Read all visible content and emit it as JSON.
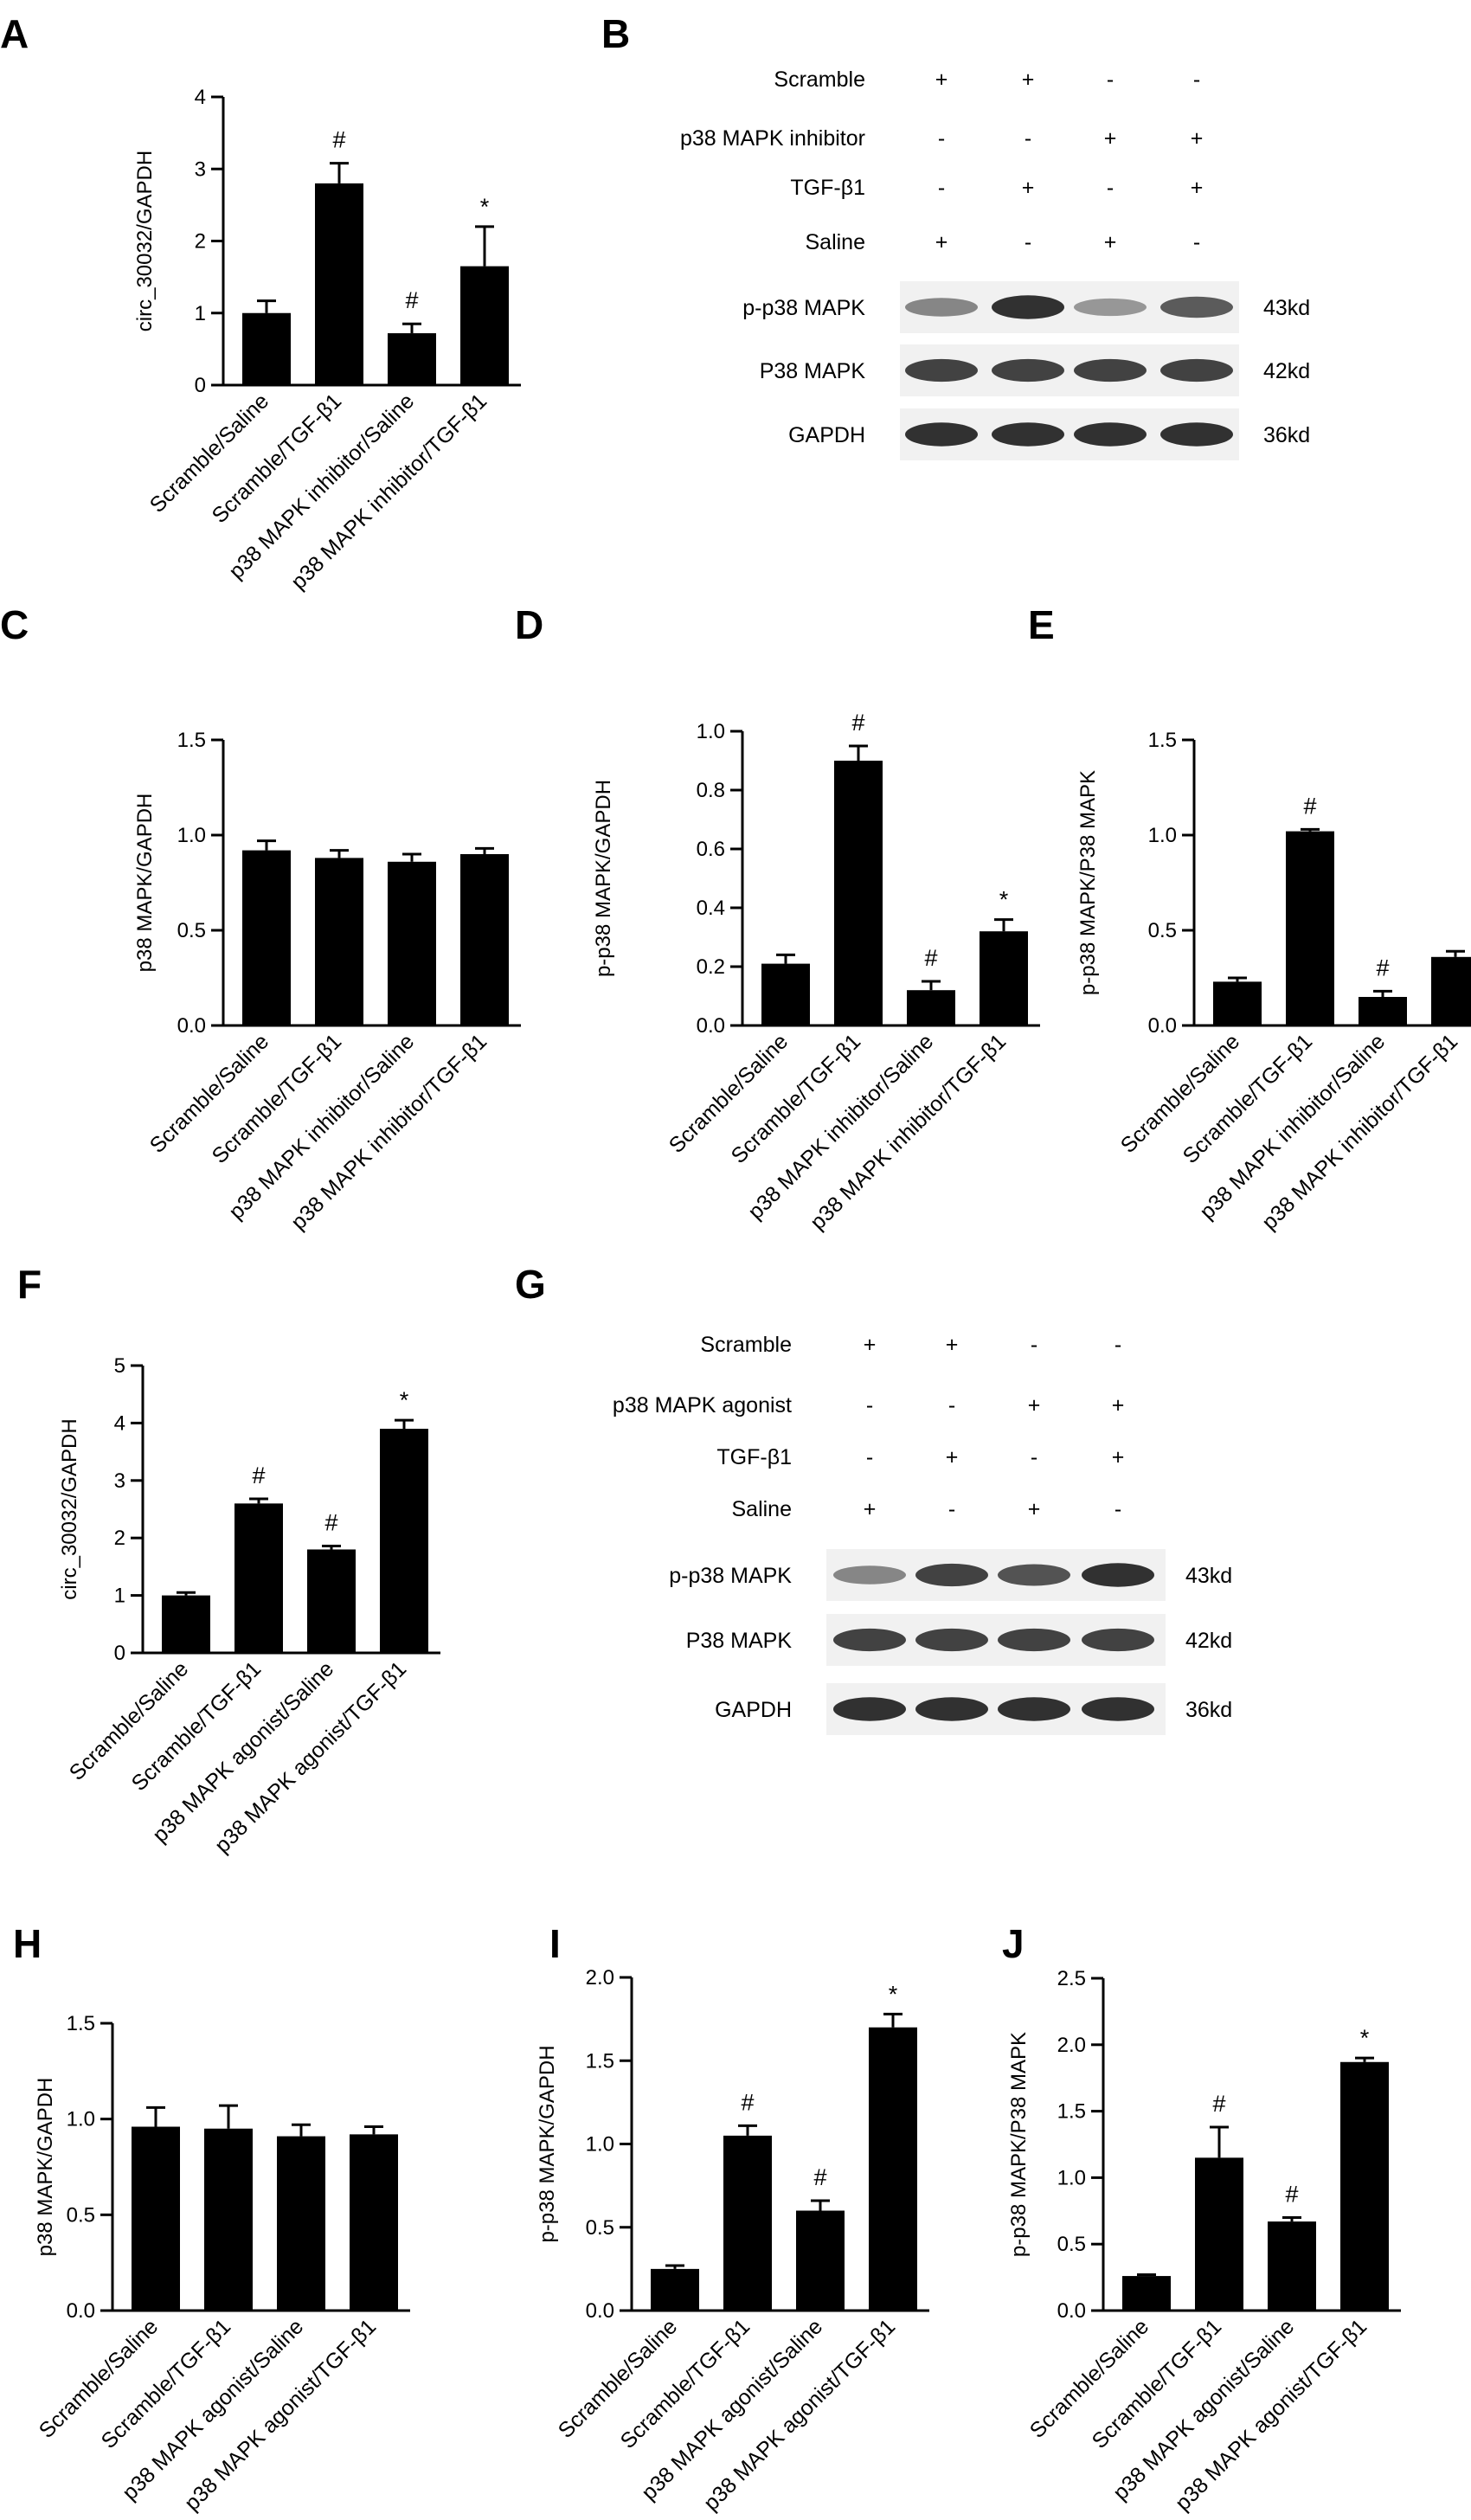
{
  "panels": [
    {
      "label": "A",
      "type": "bar",
      "ylabel": "circ_30032/GAPDH",
      "ylim": [
        0,
        4
      ],
      "yticks": [
        "0",
        "1",
        "2",
        "3",
        "4"
      ],
      "categories": [
        "Scramble/Saline",
        "Scramble/TGF-β1",
        "p38 MAPK inhibitor/Saline",
        "p38 MAPK inhibitor/TGF-β1"
      ],
      "values": [
        1.0,
        2.8,
        0.72,
        1.65
      ],
      "errors": [
        0.17,
        0.28,
        0.13,
        0.55
      ],
      "marks": [
        "",
        "#",
        "#",
        "*"
      ]
    },
    {
      "label": "C",
      "type": "bar",
      "ylabel": "p38 MAPK/GAPDH",
      "ylim": [
        0,
        1.5
      ],
      "yticks": [
        "0.0",
        "0.5",
        "1.0",
        "1.5"
      ],
      "categories": [
        "Scramble/Saline",
        "Scramble/TGF-β1",
        "p38 MAPK inhibitor/Saline",
        "p38 MAPK inhibitor/TGF-β1"
      ],
      "values": [
        0.92,
        0.88,
        0.86,
        0.9
      ],
      "errors": [
        0.05,
        0.04,
        0.04,
        0.03
      ],
      "marks": [
        "",
        "",
        "",
        ""
      ]
    },
    {
      "label": "D",
      "type": "bar",
      "ylabel": "p-p38 MAPK/GAPDH",
      "ylim": [
        0,
        1.0
      ],
      "yticks": [
        "0.0",
        "0.2",
        "0.4",
        "0.6",
        "0.8",
        "1.0"
      ],
      "categories": [
        "Scramble/Saline",
        "Scramble/TGF-β1",
        "p38 MAPK inhibitor/Saline",
        "p38 MAPK inhibitor/TGF-β1"
      ],
      "values": [
        0.21,
        0.9,
        0.12,
        0.32
      ],
      "errors": [
        0.03,
        0.05,
        0.03,
        0.04
      ],
      "marks": [
        "",
        "#",
        "#",
        "*"
      ]
    },
    {
      "label": "E",
      "type": "bar",
      "ylabel": "p-p38 MAPK/P38 MAPK",
      "ylim": [
        0,
        1.5
      ],
      "yticks": [
        "0.0",
        "0.5",
        "1.0",
        "1.5"
      ],
      "categories": [
        "Scramble/Saline",
        "Scramble/TGF-β1",
        "p38 MAPK inhibitor/Saline",
        "p38 MAPK inhibitor/TGF-β1"
      ],
      "values": [
        0.23,
        1.02,
        0.15,
        0.36
      ],
      "errors": [
        0.02,
        0.01,
        0.03,
        0.03
      ],
      "marks": [
        "",
        "#",
        "#",
        ""
      ]
    },
    {
      "label": "F",
      "type": "bar",
      "ylabel": "circ_30032/GAPDH",
      "ylim": [
        0,
        5
      ],
      "yticks": [
        "0",
        "1",
        "2",
        "3",
        "4",
        "5"
      ],
      "categories": [
        "Scramble/Saline",
        "Scramble/TGF-β1",
        "p38 MAPK agonist/Saline",
        "p38 MAPK agonist/TGF-β1"
      ],
      "values": [
        1.0,
        2.6,
        1.8,
        3.9
      ],
      "errors": [
        0.05,
        0.08,
        0.06,
        0.15
      ],
      "marks": [
        "",
        "#",
        "#",
        "*"
      ]
    },
    {
      "label": "H",
      "type": "bar",
      "ylabel": "p38 MAPK/GAPDH",
      "ylim": [
        0,
        1.5
      ],
      "yticks": [
        "0.0",
        "0.5",
        "1.0",
        "1.5"
      ],
      "categories": [
        "Scramble/Saline",
        "Scramble/TGF-β1",
        "p38 MAPK agonist/Saline",
        "p38 MAPK agonist/TGF-β1"
      ],
      "values": [
        0.96,
        0.95,
        0.91,
        0.92
      ],
      "errors": [
        0.1,
        0.12,
        0.06,
        0.04
      ],
      "marks": [
        "",
        "",
        "",
        ""
      ]
    },
    {
      "label": "I",
      "type": "bar",
      "ylabel": "p-p38 MAPK/GAPDH",
      "ylim": [
        0,
        2.0
      ],
      "yticks": [
        "0.0",
        "0.5",
        "1.0",
        "1.5",
        "2.0"
      ],
      "categories": [
        "Scramble/Saline",
        "Scramble/TGF-β1",
        "p38 MAPK agonist/Saline",
        "p38 MAPK agonist/TGF-β1"
      ],
      "values": [
        0.25,
        1.05,
        0.6,
        1.7
      ],
      "errors": [
        0.02,
        0.06,
        0.06,
        0.08
      ],
      "marks": [
        "",
        "#",
        "#",
        "*"
      ]
    },
    {
      "label": "J",
      "type": "bar",
      "ylabel": "p-p38 MAPK/P38 MAPK",
      "ylim": [
        0,
        2.5
      ],
      "yticks": [
        "0.0",
        "0.5",
        "1.0",
        "1.5",
        "2.0",
        "2.5"
      ],
      "categories": [
        "Scramble/Saline",
        "Scramble/TGF-β1",
        "p38 MAPK agonist/Saline",
        "p38 MAPK agonist/TGF-β1"
      ],
      "values": [
        0.26,
        1.15,
        0.67,
        1.87
      ],
      "errors": [
        0.01,
        0.23,
        0.03,
        0.03
      ],
      "marks": [
        "",
        "#",
        "#",
        "*"
      ]
    }
  ],
  "blots": [
    {
      "label": "B",
      "conditions": [
        {
          "name": "Scramble",
          "signs": [
            "+",
            "+",
            "-",
            "-"
          ]
        },
        {
          "name": "p38 MAPK inhibitor",
          "signs": [
            "-",
            "-",
            "+",
            "+"
          ]
        },
        {
          "name": "TGF-β1",
          "signs": [
            "-",
            "+",
            "-",
            "+"
          ]
        },
        {
          "name": "Saline",
          "signs": [
            "+",
            "-",
            "+",
            "-"
          ]
        }
      ],
      "bands": [
        {
          "name": "p-p38 MAPK",
          "size": "43kd",
          "intensity": [
            0.45,
            0.95,
            0.35,
            0.7
          ]
        },
        {
          "name": "P38 MAPK",
          "size": "42kd",
          "intensity": [
            0.85,
            0.85,
            0.85,
            0.85
          ]
        },
        {
          "name": "GAPDH",
          "size": "36kd",
          "intensity": [
            0.95,
            0.95,
            0.95,
            0.95
          ]
        }
      ]
    },
    {
      "label": "G",
      "conditions": [
        {
          "name": "Scramble",
          "signs": [
            "+",
            "+",
            "-",
            "-"
          ]
        },
        {
          "name": "p38 MAPK agonist",
          "signs": [
            "-",
            "-",
            "+",
            "+"
          ]
        },
        {
          "name": "TGF-β1",
          "signs": [
            "-",
            "+",
            "-",
            "+"
          ]
        },
        {
          "name": "Saline",
          "signs": [
            "+",
            "-",
            "+",
            "-"
          ]
        }
      ],
      "bands": [
        {
          "name": "p-p38 MAPK",
          "size": "43kd",
          "intensity": [
            0.45,
            0.85,
            0.75,
            0.95
          ]
        },
        {
          "name": "P38 MAPK",
          "size": "42kd",
          "intensity": [
            0.85,
            0.85,
            0.85,
            0.85
          ]
        },
        {
          "name": "GAPDH",
          "size": "36kd",
          "intensity": [
            0.95,
            0.95,
            0.95,
            0.95
          ]
        }
      ]
    }
  ]
}
